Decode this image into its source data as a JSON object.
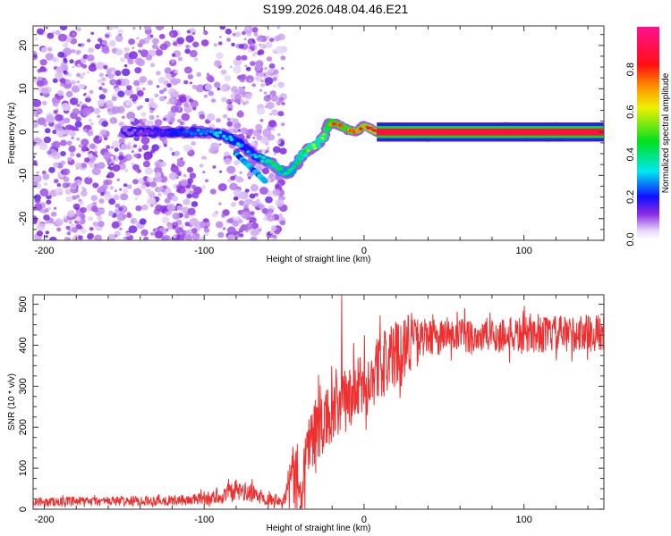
{
  "title": "S199.2026.048.04.46.E21",
  "chart_data": [
    {
      "type": "heatmap",
      "name": "spectrogram",
      "xlabel": "Height of straight line (km)",
      "ylabel": "Frequency (Hz)",
      "xlim": [
        -207,
        150
      ],
      "ylim": [
        -25,
        24.5
      ],
      "xticks": [
        -200,
        -100,
        0,
        100
      ],
      "xtick_labels": [
        "-200",
        "-100",
        "0",
        "100"
      ],
      "yticks": [
        -20,
        -10,
        0,
        10,
        20
      ],
      "ytick_labels": [
        "-20",
        "-10",
        "0",
        "10",
        "20"
      ],
      "colorbar": {
        "label": "Normalized spectral amplitude",
        "range": [
          0,
          1
        ],
        "ticks": [
          0.0,
          0.2,
          0.4,
          0.6,
          0.8
        ],
        "tick_labels": [
          "0.0",
          "0.2",
          "0.4",
          "0.6",
          "0.8"
        ],
        "colormap": [
          {
            "v": 0.0,
            "color": "#ffffff"
          },
          {
            "v": 0.04,
            "color": "#e8d8f8"
          },
          {
            "v": 0.12,
            "color": "#8a2be2"
          },
          {
            "v": 0.2,
            "color": "#1010ff"
          },
          {
            "v": 0.32,
            "color": "#00e8f0"
          },
          {
            "v": 0.46,
            "color": "#00e020"
          },
          {
            "v": 0.62,
            "color": "#f0f000"
          },
          {
            "v": 0.72,
            "color": "#ff9000"
          },
          {
            "v": 0.82,
            "color": "#ff1010"
          },
          {
            "v": 1.0,
            "color": "#ff1090"
          }
        ]
      },
      "ridge": {
        "x": [
          -150,
          -130,
          -110,
          -100,
          -90,
          -80,
          -70,
          -60,
          -55,
          -50,
          -45,
          -40,
          -35,
          -30,
          -25,
          -22,
          -18,
          -10,
          -5,
          0,
          3,
          8,
          20,
          60,
          100,
          150
        ],
        "freq": [
          0,
          0,
          0,
          0,
          -0.5,
          -2,
          -5,
          -7,
          -8,
          -9.5,
          -9,
          -6,
          -4,
          -3,
          -1,
          2,
          2,
          0.5,
          0,
          1.5,
          1,
          0,
          0,
          0,
          0,
          0
        ],
        "amplitude": [
          0.1,
          0.15,
          0.25,
          0.3,
          0.35,
          0.35,
          0.3,
          0.45,
          0.5,
          0.45,
          0.45,
          0.5,
          0.55,
          0.6,
          0.6,
          0.75,
          0.8,
          0.8,
          0.85,
          0.85,
          0.9,
          0.9,
          0.9,
          0.9,
          0.9,
          0.95
        ]
      },
      "noise_region_x": [
        -207,
        -60
      ]
    },
    {
      "type": "line",
      "name": "snr",
      "xlabel": "Height of straight line (km)",
      "ylabel": "SNR (10 * v/v)",
      "xlim": [
        -207,
        150
      ],
      "ylim": [
        0,
        523
      ],
      "xticks": [
        -200,
        -100,
        0,
        100
      ],
      "xtick_labels": [
        "-200",
        "-100",
        "0",
        "100"
      ],
      "yticks": [
        0,
        100,
        200,
        300,
        400,
        500
      ],
      "ytick_labels": [
        "0",
        "100",
        "200",
        "300",
        "400",
        "500"
      ],
      "color": "#f03030",
      "trend": {
        "x": [
          -207,
          -150,
          -110,
          -90,
          -80,
          -70,
          -60,
          -50,
          -45,
          -40,
          -35,
          -30,
          -25,
          -20,
          -10,
          0,
          10,
          20,
          30,
          50,
          100,
          150
        ],
        "y": [
          18,
          20,
          22,
          30,
          45,
          38,
          25,
          25,
          85,
          40,
          160,
          200,
          210,
          230,
          270,
          300,
          350,
          380,
          420,
          420,
          425,
          430
        ]
      },
      "noise_amplitude": 35,
      "spike": {
        "x": -14,
        "y": 523
      }
    }
  ]
}
